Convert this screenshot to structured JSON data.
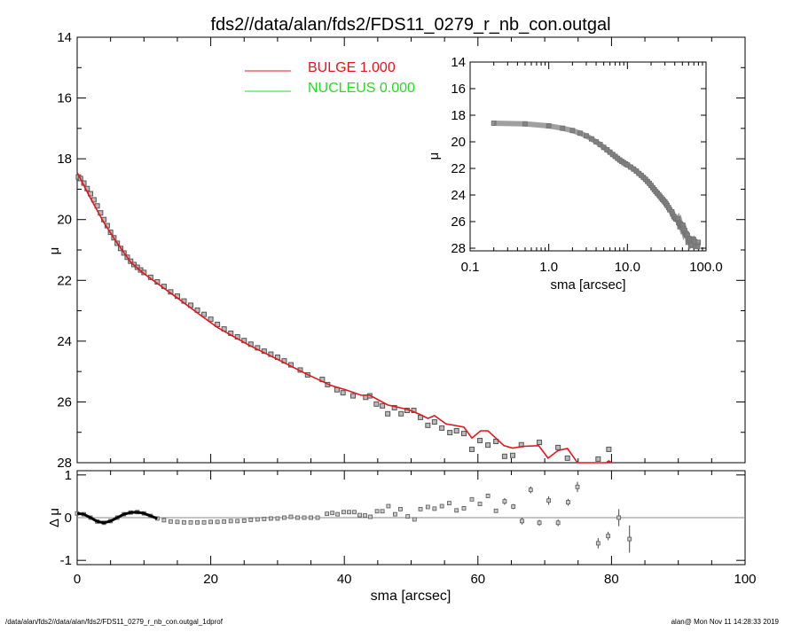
{
  "chart_data": [
    {
      "type": "scatter",
      "name": "main-profile",
      "title": "fds2//data/alan/fds2/FDS11_0279_r_nb_con.outgal",
      "xlabel": "",
      "ylabel": "μ",
      "xlim": [
        0,
        100
      ],
      "ylim": [
        28,
        14
      ],
      "x_ticks": [
        0,
        20,
        40,
        60,
        80,
        100
      ],
      "y_ticks": [
        14,
        16,
        18,
        20,
        22,
        24,
        26,
        28
      ],
      "legend": {
        "placement": "top-center",
        "entries": [
          {
            "label": "BULGE  1.000",
            "color": "#e8141a"
          },
          {
            "label": "NUCLEUS  0.000",
            "color": "#22dd22"
          }
        ]
      },
      "data": {
        "sma": [
          0.2,
          0.5,
          1,
          1.5,
          2,
          2.5,
          3,
          3.5,
          4,
          4.5,
          5,
          5.5,
          6,
          6.5,
          7,
          7.5,
          8,
          8.5,
          9,
          9.5,
          10,
          11,
          12,
          13,
          14,
          15,
          16,
          17,
          18,
          19,
          20,
          21,
          22,
          23,
          24,
          25,
          26,
          27,
          28,
          29,
          30,
          31,
          32,
          33.4,
          34.5,
          36.7,
          37.5,
          38.9,
          39.8,
          41.3,
          43.2,
          43.8,
          44.8,
          45.7,
          46.5,
          47.5,
          48.5,
          49.4,
          50.4,
          51.4,
          52.5,
          53.5,
          54.6,
          55.8,
          56.8,
          57.9,
          59.1,
          60.3,
          61.5,
          62.7,
          64.0,
          65.2,
          66.5,
          69.2,
          72.0,
          73.4,
          78.0,
          79.6
        ],
        "mu": [
          18.6,
          18.65,
          18.8,
          18.98,
          19.15,
          19.35,
          19.55,
          19.78,
          20.0,
          20.2,
          20.42,
          20.6,
          20.78,
          20.95,
          21.1,
          21.24,
          21.37,
          21.48,
          21.57,
          21.66,
          21.74,
          21.9,
          22.05,
          22.2,
          22.38,
          22.52,
          22.68,
          22.82,
          22.98,
          23.12,
          23.28,
          23.45,
          23.6,
          23.74,
          23.86,
          23.98,
          24.1,
          24.22,
          24.33,
          24.43,
          24.53,
          24.65,
          24.78,
          24.95,
          25.11,
          25.26,
          25.43,
          25.6,
          25.7,
          25.8,
          25.85,
          25.8,
          26.07,
          26.13,
          26.39,
          26.19,
          26.39,
          26.28,
          26.28,
          26.51,
          26.77,
          26.66,
          26.86,
          27.01,
          26.95,
          27.04,
          27.56,
          27.27,
          27.42,
          27.3,
          27.79,
          27.76,
          27.41,
          27.33,
          27.5,
          27.85,
          27.88,
          27.56
        ]
      },
      "model_bulge": {
        "sma": [
          0,
          2,
          4,
          5.7,
          8,
          10,
          12,
          15,
          18,
          21,
          25.6,
          30,
          34.5,
          38.0,
          40.2,
          42.5,
          43.8,
          46.5,
          49.5,
          51.2,
          52.5,
          53.5,
          55.2,
          57.9,
          59.1,
          60.4,
          61.5,
          63.9,
          65.2,
          66.8,
          69.1,
          70.5,
          72.0,
          73.4,
          74.9,
          79.2,
          79.6,
          80.0
        ],
        "mu": [
          18.45,
          19.3,
          20.1,
          20.68,
          21.4,
          21.78,
          22.1,
          22.58,
          23.07,
          23.55,
          24.12,
          24.6,
          25.1,
          25.46,
          25.6,
          25.78,
          25.78,
          26.1,
          26.25,
          26.4,
          26.54,
          26.45,
          26.72,
          26.83,
          27.19,
          26.95,
          26.95,
          27.44,
          27.52,
          27.46,
          27.44,
          27.85,
          27.6,
          27.53,
          28.05,
          28.05,
          27.94,
          28.05
        ]
      }
    },
    {
      "type": "scatter",
      "name": "residuals",
      "xlabel": "sma [arcsec]",
      "ylabel": "Δ μ",
      "xlim": [
        0,
        100
      ],
      "ylim": [
        -1.1,
        1.1
      ],
      "x_ticks": [
        0,
        20,
        40,
        60,
        80,
        100
      ],
      "y_ticks": [
        -1,
        0,
        1
      ],
      "zero_line": 0,
      "sma": [
        0,
        1,
        2,
        3,
        4,
        5,
        6,
        7,
        8,
        9,
        10,
        11,
        12,
        13,
        14,
        15,
        16,
        17,
        18,
        19,
        20,
        21,
        22,
        23,
        24,
        25,
        26,
        27,
        28,
        29,
        30,
        31,
        32,
        33,
        34,
        35,
        36,
        37.4,
        38.2,
        39.0,
        39.9,
        40.7,
        41.5,
        42.3,
        43.1,
        43.9,
        44.9,
        45.7,
        46.6,
        47.6,
        48.4,
        49.5,
        50.5,
        51.4,
        52.5,
        53.5,
        54.6,
        55.7,
        56.8,
        57.9,
        59.1,
        60.3,
        61.5,
        62.7,
        64.0,
        65.3,
        66.6,
        67.9,
        69.2,
        70.6,
        72.0,
        73.5,
        74.9,
        78.0,
        79.5,
        81.1,
        82.7
      ],
      "delta_mu": [
        0.1,
        0.08,
        0.0,
        -0.09,
        -0.12,
        -0.08,
        0.0,
        0.08,
        0.12,
        0.13,
        0.1,
        0.04,
        -0.02,
        -0.06,
        -0.09,
        -0.1,
        -0.11,
        -0.11,
        -0.11,
        -0.11,
        -0.1,
        -0.1,
        -0.09,
        -0.08,
        -0.08,
        -0.07,
        -0.05,
        -0.04,
        -0.03,
        -0.02,
        -0.02,
        0.0,
        0.02,
        0.0,
        0.0,
        0.0,
        0.0,
        0.09,
        0.11,
        0.08,
        0.13,
        0.13,
        0.13,
        0.06,
        0.05,
        0.02,
        0.15,
        0.15,
        0.27,
        0.08,
        0.2,
        0.03,
        -0.04,
        0.2,
        0.25,
        0.21,
        0.27,
        0.34,
        0.17,
        0.22,
        0.43,
        0.32,
        0.51,
        0.16,
        0.38,
        0.26,
        -0.08,
        0.65,
        -0.12,
        0.4,
        -0.12,
        0.36,
        0.72,
        -0.6,
        -0.43,
        0.0,
        -0.5
      ],
      "error": [
        0,
        0,
        0,
        0,
        0,
        0,
        0,
        0,
        0,
        0,
        0,
        0,
        0,
        0,
        0,
        0,
        0,
        0,
        0,
        0,
        0,
        0,
        0,
        0,
        0,
        0,
        0,
        0,
        0,
        0,
        0,
        0,
        0,
        0,
        0,
        0,
        0,
        0,
        0,
        0,
        0,
        0,
        0,
        0,
        0,
        0,
        0,
        0,
        0,
        0,
        0,
        0,
        0,
        0,
        0,
        0,
        0,
        0,
        0,
        0,
        0,
        0,
        0,
        0,
        0.08,
        0.06,
        0.08,
        0.08,
        0.07,
        0.1,
        0.08,
        0.08,
        0.12,
        0.12,
        0.1,
        0.2,
        0.32
      ]
    },
    {
      "type": "scatter",
      "name": "inset-log-profile",
      "xlabel": "sma [arcsec]",
      "ylabel": "μ",
      "xscale": "log",
      "xlim": [
        0.1,
        100
      ],
      "ylim": [
        28.2,
        14
      ],
      "x_tick_labels": [
        "0.1",
        "1.0",
        "10.0",
        "100.0"
      ],
      "y_ticks": [
        14,
        16,
        18,
        20,
        22,
        24,
        26,
        28
      ]
    }
  ],
  "footer": {
    "left": "/data/alan/fds2//data/alan/fds2/FDS11_0279_r_nb_con.outgal_1dprof",
    "right": "alan@  Mon Nov 11 14:28:33 2019"
  }
}
